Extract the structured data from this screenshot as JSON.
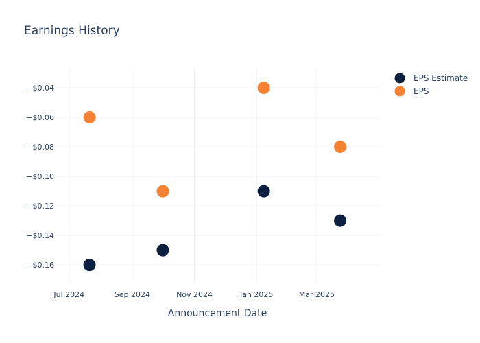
{
  "chart_data": {
    "type": "scatter",
    "title": "Earnings History",
    "xlabel": "Announcement Date",
    "ylabel": "",
    "x_ticks": [
      {
        "date": "2024-07-01",
        "label": "Jul 2024"
      },
      {
        "date": "2024-09-01",
        "label": "Sep 2024"
      },
      {
        "date": "2024-11-01",
        "label": "Nov 2024"
      },
      {
        "date": "2025-01-01",
        "label": "Jan 2025"
      },
      {
        "date": "2025-03-01",
        "label": "Mar 2025"
      }
    ],
    "xlim": [
      "2024-06-17",
      "2025-05-02"
    ],
    "y_ticks": [
      {
        "value": -0.04,
        "label": "−$0.04"
      },
      {
        "value": -0.06,
        "label": "−$0.06"
      },
      {
        "value": -0.08,
        "label": "−$0.08"
      },
      {
        "value": -0.1,
        "label": "−$0.10"
      },
      {
        "value": -0.12,
        "label": "−$0.12"
      },
      {
        "value": -0.14,
        "label": "−$0.14"
      },
      {
        "value": -0.16,
        "label": "−$0.16"
      }
    ],
    "ylim": [
      -0.172,
      -0.027
    ],
    "grid": true,
    "legend_position": "top-right",
    "series": [
      {
        "name": "EPS Estimate",
        "color": "#0c1f3f",
        "points": [
          {
            "x": "2024-07-21",
            "y": -0.16
          },
          {
            "x": "2024-10-01",
            "y": -0.15
          },
          {
            "x": "2025-01-08",
            "y": -0.11
          },
          {
            "x": "2025-03-24",
            "y": -0.13
          }
        ]
      },
      {
        "name": "EPS",
        "color": "#f58233",
        "points": [
          {
            "x": "2024-07-21",
            "y": -0.06
          },
          {
            "x": "2024-10-01",
            "y": -0.11
          },
          {
            "x": "2025-01-08",
            "y": -0.04
          },
          {
            "x": "2025-03-24",
            "y": -0.08
          }
        ]
      }
    ]
  }
}
